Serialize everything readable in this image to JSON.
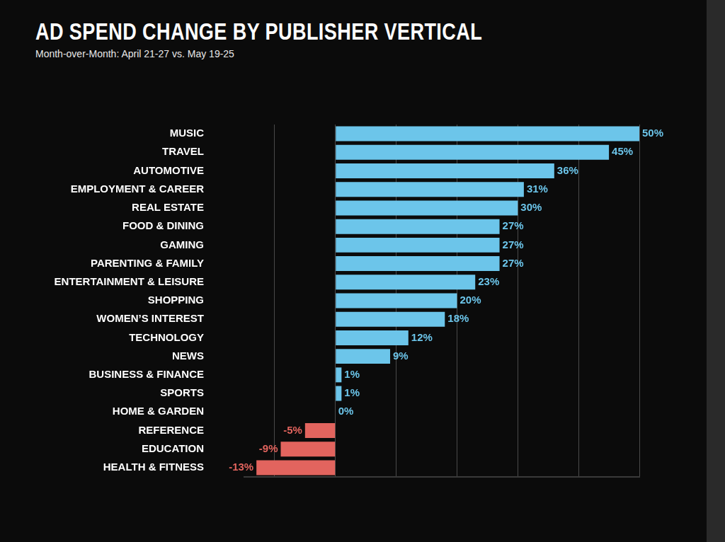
{
  "chart_data": {
    "type": "bar",
    "title": "AD SPEND CHANGE BY PUBLISHER VERTICAL",
    "subtitle": "Month-over-Month: April 21-27 vs. May 19-25",
    "orientation": "horizontal",
    "categories": [
      "MUSIC",
      "TRAVEL",
      "AUTOMOTIVE",
      "EMPLOYMENT & CAREER",
      "REAL ESTATE",
      "FOOD & DINING",
      "GAMING",
      "PARENTING & FAMILY",
      "ENTERTAINMENT & LEISURE",
      "SHOPPING",
      "WOMEN’S INTEREST",
      "TECHNOLOGY",
      "NEWS",
      "BUSINESS & FINANCE",
      "SPORTS",
      "HOME & GARDEN",
      "REFERENCE",
      "EDUCATION",
      "HEALTH & FITNESS"
    ],
    "values": [
      50,
      45,
      36,
      31,
      30,
      27,
      27,
      27,
      23,
      20,
      18,
      12,
      9,
      1,
      1,
      0,
      -5,
      -9,
      -13
    ],
    "value_labels": [
      "50%",
      "45%",
      "36%",
      "31%",
      "30%",
      "27%",
      "27%",
      "27%",
      "23%",
      "20%",
      "18%",
      "12%",
      "9%",
      "1%",
      "1%",
      "0%",
      "-5%",
      "-9%",
      "-13%"
    ],
    "colors": [
      "#6cc5ea",
      "#6cc5ea",
      "#6cc5ea",
      "#6cc5ea",
      "#6cc5ea",
      "#6cc5ea",
      "#6cc5ea",
      "#6cc5ea",
      "#6cc5ea",
      "#6cc5ea",
      "#6cc5ea",
      "#6cc5ea",
      "#6cc5ea",
      "#6cc5ea",
      "#6cc5ea",
      "#6cc5ea",
      "#e2645e",
      "#e2645e",
      "#e2645e"
    ],
    "xlim": [
      -15,
      50
    ],
    "xticks": [
      -10,
      0,
      10,
      20,
      30,
      40,
      50
    ],
    "grid": true,
    "data_labels": true,
    "tick_labels": "y"
  }
}
